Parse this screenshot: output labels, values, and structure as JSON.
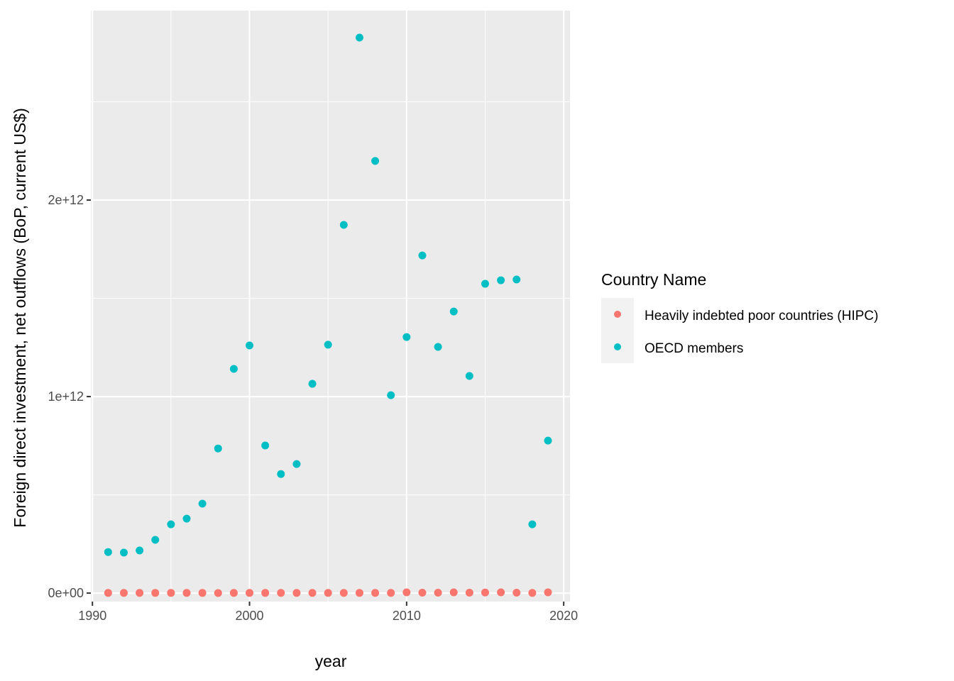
{
  "chart_data": {
    "type": "scatter",
    "xlabel": "year",
    "ylabel": "Foreign direct investment, net outflows (BoP, current US$)",
    "xlim": [
      1989.9,
      2020.4
    ],
    "ylim": [
      -43000000000.0,
      2964000000000.0
    ],
    "xticks": [
      1990,
      2000,
      2010,
      2020
    ],
    "xtick_labels": [
      "1990",
      "2000",
      "2010",
      "2020"
    ],
    "yticks": [
      0,
      1000000000000.0,
      2000000000000.0
    ],
    "ytick_labels": [
      "0e+00",
      "1e+12",
      "2e+12"
    ],
    "grid": true,
    "legend": {
      "title": "Country Name",
      "placement": "right"
    },
    "x": [
      1991,
      1992,
      1993,
      1994,
      1995,
      1996,
      1997,
      1998,
      1999,
      2000,
      2001,
      2002,
      2003,
      2004,
      2005,
      2006,
      2007,
      2008,
      2009,
      2010,
      2011,
      2012,
      2013,
      2014,
      2015,
      2016,
      2017,
      2018,
      2019
    ],
    "series": [
      {
        "name": "Heavily indebted poor countries (HIPC)",
        "color": "#F8766D",
        "values": [
          1000000000.0,
          1000000000.0,
          1000000000.0,
          1000000000.0,
          1000000000.0,
          1000000000.0,
          1000000000.0,
          500000000.0,
          1000000000.0,
          1000000000.0,
          1000000000.0,
          1000000000.0,
          1000000000.0,
          1000000000.0,
          1000000000.0,
          1000000000.0,
          1000000000.0,
          1000000000.0,
          1000000000.0,
          4000000000.0,
          2000000000.0,
          2000000000.0,
          4000000000.0,
          2000000000.0,
          3000000000.0,
          4000000000.0,
          2000000000.0,
          1000000000.0,
          4000000000.0
        ]
      },
      {
        "name": "OECD members",
        "color": "#00BFC4",
        "values": [
          209000000000.0,
          206000000000.0,
          217000000000.0,
          271000000000.0,
          350000000000.0,
          379000000000.0,
          455000000000.0,
          736000000000.0,
          1141000000000.0,
          1260000000000.0,
          751000000000.0,
          606000000000.0,
          657000000000.0,
          1065000000000.0,
          1264000000000.0,
          1874000000000.0,
          2827000000000.0,
          2199000000000.0,
          1007000000000.0,
          1303000000000.0,
          1718000000000.0,
          1253000000000.0,
          1433000000000.0,
          1105000000000.0,
          1574000000000.0,
          1592000000000.0,
          1596000000000.0,
          350000000000.0,
          776000000000.0
        ]
      }
    ]
  }
}
